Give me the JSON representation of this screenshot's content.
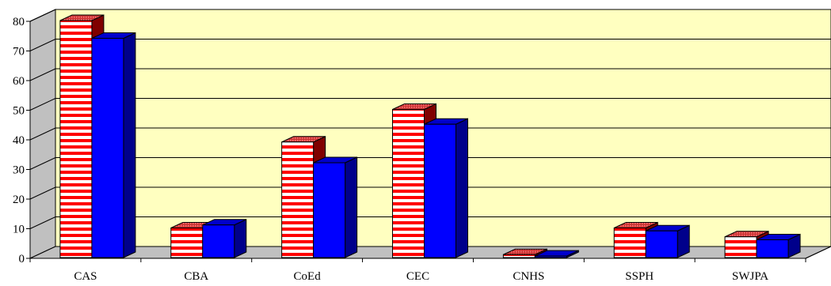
{
  "chart_data": {
    "type": "bar",
    "categories": [
      "CAS",
      "CBA",
      "CoEd",
      "CEC",
      "CNHS",
      "SSPH",
      "SWJPA"
    ],
    "series": [
      {
        "values": [
          80,
          10,
          39,
          50,
          1,
          10,
          7
        ],
        "pattern": "red-white-horizontal-stripes",
        "color": "#ff0000"
      },
      {
        "values": [
          74,
          11,
          32,
          45,
          0.5,
          9,
          6
        ],
        "color": "#0000ff"
      }
    ],
    "ylim": [
      0,
      80
    ],
    "yticks": [
      0,
      10,
      20,
      30,
      40,
      50,
      60,
      70,
      80
    ],
    "grid": true,
    "legend": "none",
    "three_d": true,
    "plot_background": "#ffffc0",
    "side_wall_color": "#c0c0c0",
    "title": "",
    "xlabel": "",
    "ylabel": ""
  }
}
